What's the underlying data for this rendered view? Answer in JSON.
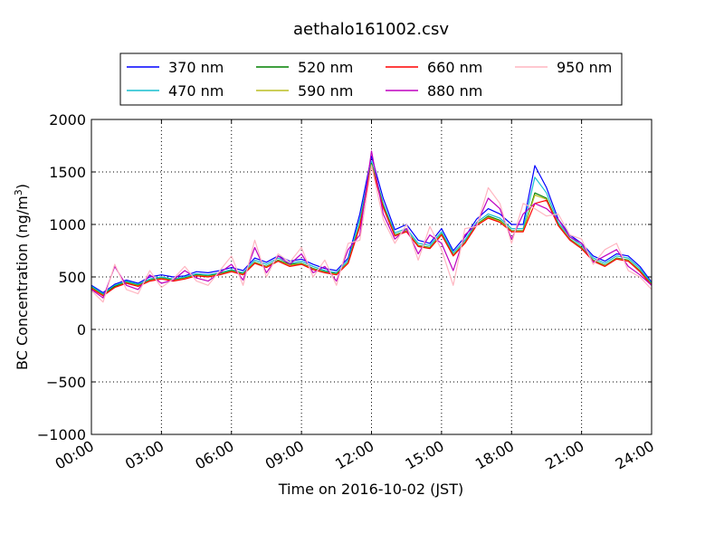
{
  "chart_data": {
    "type": "line",
    "title": "aethalo161002.csv",
    "xlabel": "Time on 2016-10-02 (JST)",
    "ylabel_main": "BC Concentration (ng/m",
    "ylabel_sup": "3",
    "ylabel_end": ")",
    "xlim": [
      0,
      24
    ],
    "ylim": [
      -1000,
      2000
    ],
    "grid": true,
    "legend_position": "top-center",
    "x_ticks": [
      {
        "value": 0,
        "label": "00:00"
      },
      {
        "value": 3,
        "label": "03:00"
      },
      {
        "value": 6,
        "label": "06:00"
      },
      {
        "value": 9,
        "label": "09:00"
      },
      {
        "value": 12,
        "label": "12:00"
      },
      {
        "value": 15,
        "label": "15:00"
      },
      {
        "value": 18,
        "label": "18:00"
      },
      {
        "value": 21,
        "label": "21:00"
      },
      {
        "value": 24,
        "label": "24:00"
      }
    ],
    "y_ticks": [
      {
        "value": 2000,
        "label": "2000"
      },
      {
        "value": 1500,
        "label": "1500"
      },
      {
        "value": 1000,
        "label": "1000"
      },
      {
        "value": 500,
        "label": "500"
      },
      {
        "value": 0,
        "label": "0"
      },
      {
        "value": -500,
        "label": "−500"
      },
      {
        "value": -1000,
        "label": "−1000"
      }
    ],
    "x": [
      0,
      0.5,
      1,
      1.5,
      2,
      2.5,
      3,
      3.5,
      4,
      4.5,
      5,
      5.5,
      6,
      6.5,
      7,
      7.5,
      8,
      8.5,
      9,
      9.5,
      10,
      10.5,
      11,
      11.5,
      12,
      12.5,
      13,
      13.5,
      14,
      14.5,
      15,
      15.5,
      16,
      16.5,
      17,
      17.5,
      18,
      18.5,
      19,
      19.5,
      20,
      20.5,
      21,
      21.5,
      22,
      22.5,
      23,
      23.5,
      24
    ],
    "series": [
      {
        "name": "370 nm",
        "color": "#0000ff",
        "values": [
          420,
          350,
          430,
          470,
          440,
          500,
          520,
          500,
          510,
          550,
          540,
          560,
          590,
          560,
          680,
          640,
          700,
          650,
          670,
          620,
          580,
          560,
          680,
          1100,
          1650,
          1250,
          950,
          1000,
          850,
          820,
          960,
          750,
          880,
          1050,
          1150,
          1100,
          1000,
          1000,
          1560,
          1350,
          1050,
          900,
          820,
          700,
          650,
          720,
          700,
          600,
          450
        ]
      },
      {
        "name": "470 nm",
        "color": "#17becf",
        "values": [
          410,
          340,
          420,
          460,
          430,
          480,
          500,
          480,
          500,
          530,
          520,
          540,
          570,
          540,
          660,
          620,
          680,
          630,
          650,
          600,
          560,
          540,
          660,
          1050,
          1600,
          1200,
          920,
          960,
          820,
          800,
          930,
          730,
          850,
          1020,
          1100,
          1060,
          960,
          960,
          1450,
          1300,
          1020,
          880,
          800,
          680,
          630,
          700,
          680,
          580,
          440
        ]
      },
      {
        "name": "520 nm",
        "color": "#008000",
        "values": [
          400,
          330,
          410,
          450,
          420,
          470,
          490,
          470,
          490,
          520,
          510,
          530,
          560,
          530,
          640,
          600,
          660,
          620,
          630,
          580,
          550,
          530,
          640,
          1000,
          1580,
          1180,
          900,
          940,
          800,
          780,
          910,
          710,
          830,
          1000,
          1080,
          1040,
          940,
          940,
          1300,
          1250,
          1000,
          860,
          780,
          660,
          610,
          680,
          660,
          560,
          430
        ]
      },
      {
        "name": "590 nm",
        "color": "#bcbd22",
        "values": [
          395,
          325,
          400,
          445,
          415,
          465,
          485,
          465,
          485,
          515,
          505,
          525,
          555,
          525,
          635,
          595,
          655,
          610,
          625,
          575,
          545,
          525,
          635,
          990,
          1570,
          1170,
          895,
          935,
          795,
          775,
          905,
          705,
          825,
          995,
          1070,
          1030,
          935,
          935,
          1280,
          1240,
          995,
          855,
          775,
          655,
          605,
          675,
          655,
          555,
          425
        ]
      },
      {
        "name": "660 nm",
        "color": "#ff0000",
        "values": [
          390,
          320,
          400,
          440,
          410,
          460,
          480,
          460,
          480,
          510,
          500,
          520,
          550,
          520,
          630,
          590,
          650,
          600,
          620,
          570,
          540,
          520,
          630,
          980,
          1560,
          1160,
          890,
          930,
          790,
          770,
          900,
          700,
          820,
          990,
          1060,
          1020,
          930,
          930,
          1200,
          1230,
          990,
          850,
          770,
          650,
          600,
          670,
          650,
          550,
          420
        ]
      },
      {
        "name": "880 nm",
        "color": "#bf00bf",
        "values": [
          380,
          300,
          600,
          420,
          380,
          520,
          440,
          470,
          560,
          490,
          460,
          540,
          620,
          470,
          780,
          540,
          700,
          620,
          720,
          540,
          600,
          460,
          760,
          900,
          1700,
          1100,
          860,
          960,
          720,
          900,
          820,
          560,
          900,
          1000,
          1250,
          1150,
          860,
          1100,
          1200,
          1150,
          1050,
          880,
          820,
          640,
          700,
          760,
          600,
          520,
          420
        ]
      },
      {
        "name": "950 nm",
        "color": "#ffb6c1",
        "values": [
          370,
          260,
          620,
          380,
          340,
          560,
          400,
          480,
          600,
          460,
          420,
          560,
          700,
          420,
          850,
          500,
          720,
          640,
          780,
          500,
          660,
          420,
          820,
          850,
          1560,
          1050,
          820,
          1000,
          660,
          980,
          760,
          420,
          960,
          980,
          1350,
          1200,
          820,
          1200,
          1150,
          1080,
          1100,
          900,
          860,
          620,
          760,
          820,
          560,
          500,
          380
        ]
      }
    ]
  }
}
